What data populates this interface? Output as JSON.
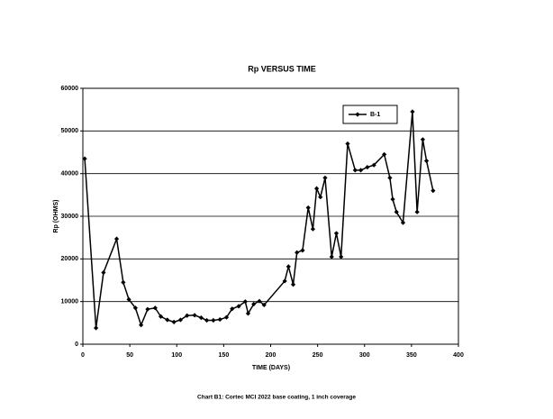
{
  "chart_data": {
    "type": "line",
    "title": "Rp VERSUS TIME",
    "x_label": "TIME (DAYS)",
    "y_label": "Rp (OHMS)",
    "caption": "Chart B1: Cortec MCI 2022 base coating, 1 inch coverage",
    "x": [
      2,
      14,
      22,
      36,
      43,
      49,
      56,
      62,
      69,
      77,
      83,
      90,
      97,
      104,
      111,
      119,
      126,
      132,
      139,
      146,
      153,
      159,
      166,
      173,
      176,
      182,
      188,
      193,
      215,
      219,
      224,
      228,
      234,
      240,
      245,
      249,
      253,
      258,
      265,
      270,
      275,
      282,
      290,
      296,
      303,
      310,
      321,
      327,
      330,
      334,
      341,
      351,
      356,
      362,
      366,
      373
    ],
    "series": [
      {
        "name": "B-1",
        "color": "#000000",
        "values": [
          43500,
          3800,
          16800,
          24700,
          14500,
          10500,
          8500,
          4500,
          8200,
          8500,
          6500,
          5700,
          5200,
          5700,
          6700,
          6800,
          6200,
          5600,
          5600,
          5800,
          6300,
          8300,
          8900,
          10000,
          7200,
          9400,
          10100,
          9200,
          14800,
          18200,
          14000,
          21500,
          22000,
          32000,
          27000,
          36500,
          34500,
          39000,
          20500,
          26000,
          20500,
          47000,
          40800,
          40800,
          41500,
          42000,
          44500,
          39000,
          34000,
          31000,
          28500,
          54500,
          31000,
          48000,
          43000,
          36000
        ]
      }
    ],
    "xlim": [
      0,
      400
    ],
    "xticks": [
      0,
      50,
      100,
      150,
      200,
      250,
      300,
      350,
      400
    ],
    "ylim": [
      0,
      60000
    ],
    "yticks": [
      0,
      10000,
      20000,
      30000,
      40000,
      50000,
      60000
    ],
    "grid": true,
    "legend": "upper right"
  }
}
